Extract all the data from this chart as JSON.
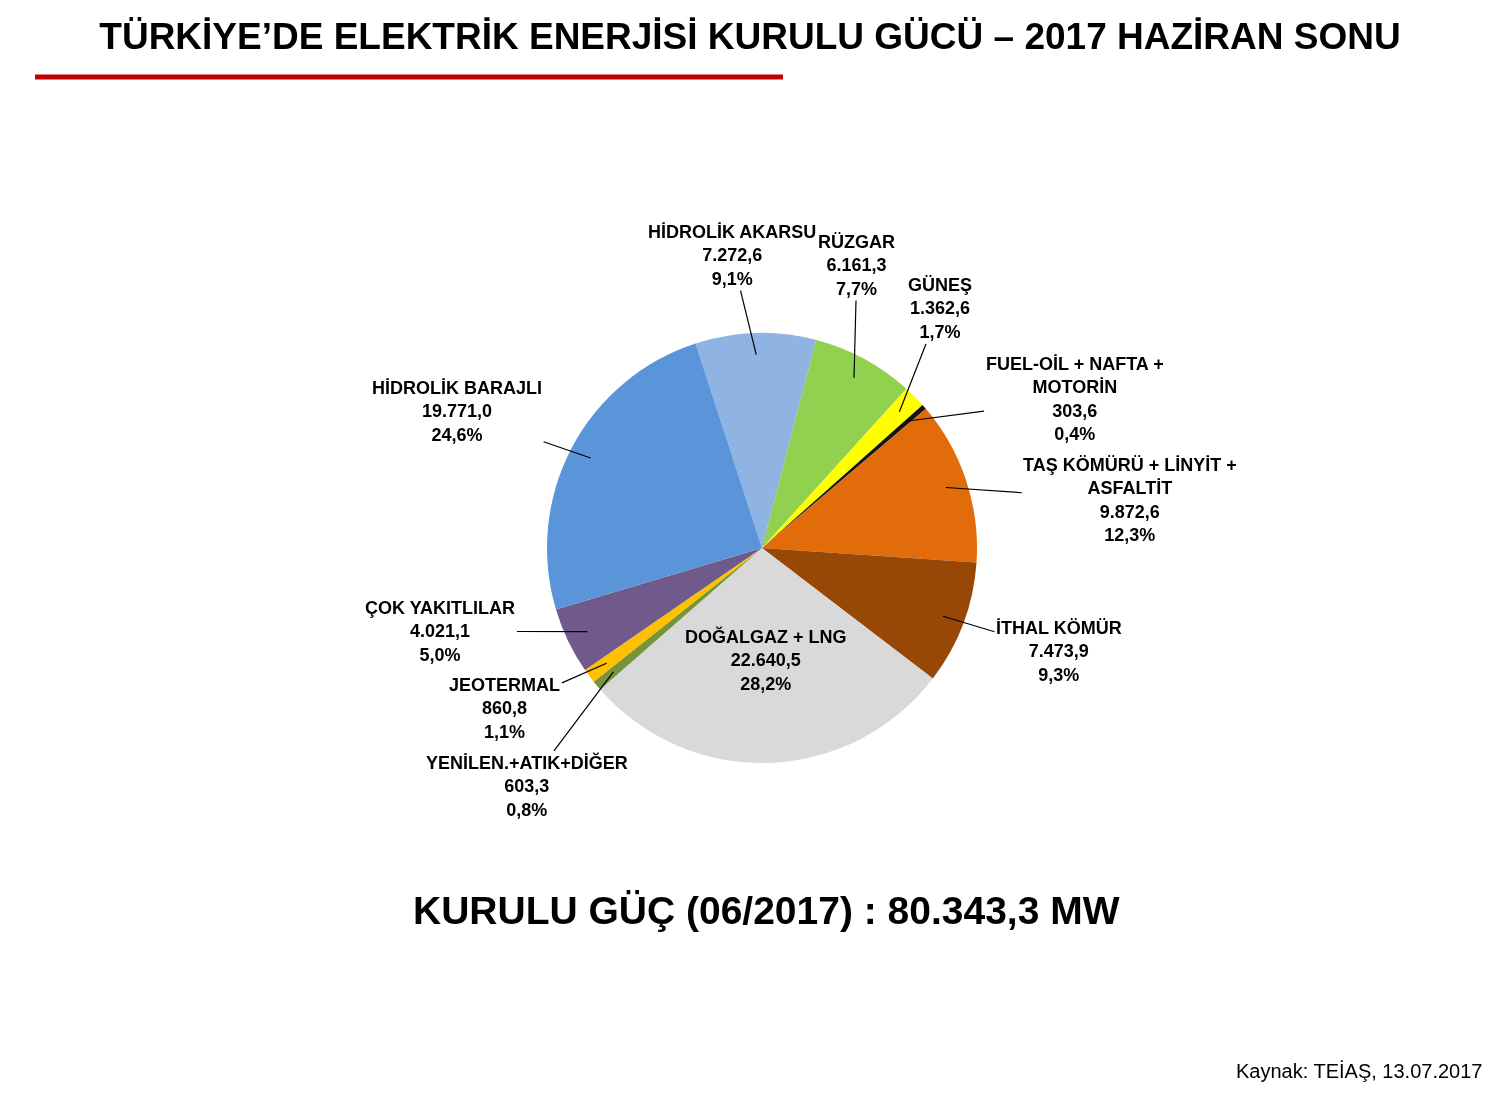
{
  "chart_data": {
    "type": "pie",
    "title": "TÜRKİYE’DE ELEKTRİK ENERJİSİ KURULU GÜCÜ – 2017 HAZİRAN SONU",
    "categories": [
      "HİDROLİK AKARSU",
      "RÜZGAR",
      "GÜNEŞ",
      "FUEL-OİL + NAFTA + MOTORİN",
      "TAŞ KÖMÜRÜ + LİNYİT + ASFALTİT",
      "İTHAL KÖMÜR",
      "DOĞALGAZ + LNG",
      "YENİLEN.+ATIK+DİĞER",
      "JEOTERMAL",
      "ÇOK YAKITLILAR",
      "HİDROLİK BARAJLI"
    ],
    "values": [
      7272.6,
      6161.3,
      1362.6,
      303.6,
      9872.6,
      7473.9,
      22640.5,
      603.3,
      860.8,
      4021.1,
      19771.0
    ],
    "colors": [
      "#8fb4e3",
      "#92d050",
      "#ffff00",
      "#141414",
      "#e36c0a",
      "#974806",
      "#d9d9d9",
      "#77933c",
      "#ffc000",
      "#705a8c",
      "#5b95d9"
    ],
    "value_labels": [
      "7.272,6\n9,1%",
      "6.161,3\n7,7%",
      "1.362,6\n1,7%",
      "303,6\n0,4%",
      "9.872,6\n12,3%",
      "7.473,9\n9,3%",
      "22.640,5\n28,2%",
      "603,3\n0,8%",
      "860,8\n1,1%",
      "4.021,1\n5,0%",
      "19.771,0\n24,6%"
    ],
    "annotations": [
      "KURULU GÜÇ (06/2017) : 80.343,3 MW",
      "Kaynak: TEİAŞ, 13.07.2017"
    ],
    "legend": false
  }
}
